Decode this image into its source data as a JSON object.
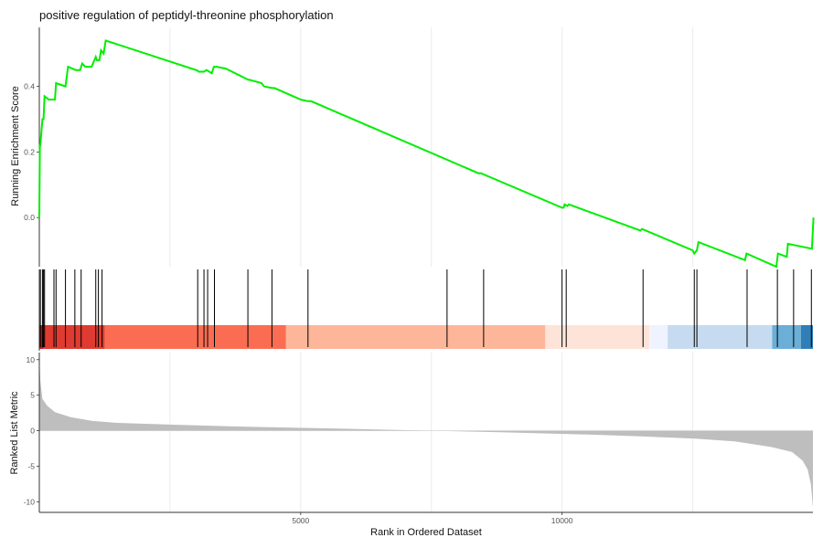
{
  "chart_data": {
    "type": "line",
    "title": "positive regulation of peptidyl-threonine phosphorylation",
    "xlabel": "Rank in Ordered Dataset",
    "xlim": [
      0,
      14800
    ],
    "x_ticks": [
      5000,
      10000
    ],
    "x_tick_labels": [
      "5000",
      "10000"
    ],
    "grid": "vertical",
    "colors": {
      "line": "#00ee00",
      "hits": "#000000",
      "metric_fill": "#bebebe"
    },
    "running_score": {
      "ylabel": "Running Enrichment Score",
      "ylim": [
        -0.15,
        0.58
      ],
      "y_ticks": [
        0.0,
        0.2,
        0.4
      ],
      "y_tick_labels": [
        "0.0",
        "0.2",
        "0.4"
      ],
      "x": [
        0,
        10,
        20,
        60,
        80,
        100,
        180,
        300,
        320,
        500,
        550,
        700,
        780,
        820,
        880,
        1000,
        1080,
        1100,
        1150,
        1180,
        1230,
        1270,
        3000,
        3010,
        3050,
        3150,
        3200,
        3300,
        3340,
        3400,
        3540,
        3560,
        4000,
        4020,
        4250,
        4300,
        4450,
        4500,
        5000,
        5140,
        5200,
        8400,
        8450,
        10000,
        10030,
        10050,
        10100,
        10130,
        11500,
        11530,
        12500,
        12530,
        12580,
        12610,
        13500,
        13530,
        14100,
        14130,
        14300,
        14320,
        14780,
        14810
      ],
      "y": [
        0.0,
        0.22,
        0.22,
        0.3,
        0.3,
        0.37,
        0.36,
        0.36,
        0.41,
        0.4,
        0.46,
        0.45,
        0.45,
        0.47,
        0.46,
        0.46,
        0.49,
        0.48,
        0.48,
        0.51,
        0.5,
        0.54,
        0.45,
        0.45,
        0.445,
        0.445,
        0.45,
        0.44,
        0.46,
        0.46,
        0.455,
        0.455,
        0.42,
        0.42,
        0.41,
        0.4,
        0.395,
        0.395,
        0.36,
        0.355,
        0.355,
        0.135,
        0.135,
        0.03,
        0.03,
        0.04,
        0.035,
        0.04,
        -0.04,
        -0.035,
        -0.1,
        -0.11,
        -0.1,
        -0.075,
        -0.13,
        -0.11,
        -0.15,
        -0.11,
        -0.12,
        -0.08,
        -0.095,
        0.0
      ]
    },
    "hits": [
      20,
      60,
      80,
      100,
      280,
      320,
      500,
      680,
      800,
      1080,
      1130,
      1200,
      3030,
      3150,
      3220,
      3350,
      3990,
      4450,
      5140,
      7800,
      8500,
      10000,
      10080,
      11550,
      12530,
      12580,
      13540,
      14120,
      14430,
      14770
    ],
    "color_bar": {
      "segments": [
        {
          "from": 0,
          "to": 80,
          "color": "#c3151b"
        },
        {
          "from": 80,
          "to": 1250,
          "color": "#e03b30"
        },
        {
          "from": 1250,
          "to": 4720,
          "color": "#fb6d52"
        },
        {
          "from": 4720,
          "to": 9680,
          "color": "#fdb69a"
        },
        {
          "from": 9680,
          "to": 11670,
          "color": "#fee4d8"
        },
        {
          "from": 11670,
          "to": 12020,
          "color": "#eff3ff"
        },
        {
          "from": 12020,
          "to": 14020,
          "color": "#c6dbef"
        },
        {
          "from": 14020,
          "to": 14570,
          "color": "#6baed6"
        },
        {
          "from": 14570,
          "to": 14800,
          "color": "#2f7eb8"
        }
      ]
    },
    "ranked_metric": {
      "ylabel": "Ranked List Metric",
      "ylim": [
        -11.5,
        11
      ],
      "y_ticks": [
        10,
        5,
        0,
        -5,
        -10
      ],
      "y_tick_labels": [
        "10",
        "5",
        "0",
        "-5",
        "-10"
      ],
      "x": [
        0,
        20,
        60,
        150,
        300,
        600,
        1000,
        1500,
        2500,
        4000,
        6000,
        7500,
        9000,
        10500,
        11500,
        12500,
        13300,
        14000,
        14400,
        14600,
        14700,
        14760,
        14800
      ],
      "y": [
        10.5,
        7.0,
        4.5,
        3.5,
        2.6,
        1.9,
        1.4,
        1.1,
        0.85,
        0.55,
        0.25,
        0.0,
        -0.25,
        -0.55,
        -0.8,
        -1.1,
        -1.5,
        -2.3,
        -3.0,
        -4.2,
        -5.5,
        -7.5,
        -10.8
      ]
    }
  }
}
